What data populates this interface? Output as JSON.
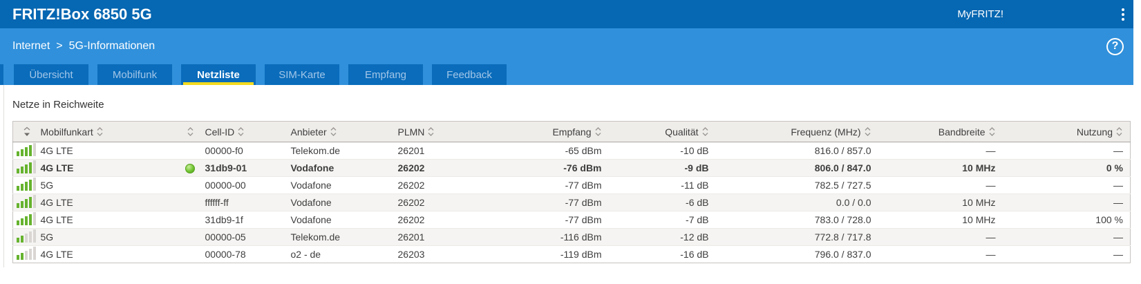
{
  "header": {
    "title": "FRITZ!Box 6850 5G",
    "myfritz_label": "MyFRITZ!"
  },
  "breadcrumb": {
    "section": "Internet",
    "separator": ">",
    "page": "5G-Informationen",
    "help_label": "?"
  },
  "tabs": [
    {
      "label": "Übersicht",
      "active": false
    },
    {
      "label": "Mobilfunk",
      "active": false
    },
    {
      "label": "Netzliste",
      "active": true
    },
    {
      "label": "SIM-Karte",
      "active": false
    },
    {
      "label": "Empfang",
      "active": false
    },
    {
      "label": "Feedback",
      "active": false
    }
  ],
  "main": {
    "heading": "Netze in Reichweite"
  },
  "table": {
    "columns": {
      "mobilfunkart": "Mobilfunkart",
      "cell_id": "Cell-ID",
      "anbieter": "Anbieter",
      "plmn": "PLMN",
      "empfang": "Empfang",
      "qualitaet": "Qualität",
      "frequenz": "Frequenz (MHz)",
      "bandbreite": "Bandbreite",
      "nutzung": "Nutzung"
    },
    "rows": [
      {
        "signal_bars": 4,
        "connected": false,
        "mobilfunkart": "4G LTE",
        "cell_id": "00000-f0",
        "anbieter": "Telekom.de",
        "plmn": "26201",
        "empfang": "-65 dBm",
        "qualitaet": "-10 dB",
        "frequenz": "816.0 / 857.0",
        "bandbreite": "—",
        "nutzung": "—"
      },
      {
        "signal_bars": 4,
        "connected": true,
        "mobilfunkart": "4G LTE",
        "cell_id": "31db9-01",
        "anbieter": "Vodafone",
        "plmn": "26202",
        "empfang": "-76 dBm",
        "qualitaet": "-9 dB",
        "frequenz": "806.0 / 847.0",
        "bandbreite": "10 MHz",
        "nutzung": "0 %"
      },
      {
        "signal_bars": 4,
        "connected": false,
        "mobilfunkart": "5G",
        "cell_id": "00000-00",
        "anbieter": "Vodafone",
        "plmn": "26202",
        "empfang": "-77 dBm",
        "qualitaet": "-11 dB",
        "frequenz": "782.5 / 727.5",
        "bandbreite": "—",
        "nutzung": "—"
      },
      {
        "signal_bars": 4,
        "connected": false,
        "mobilfunkart": "4G LTE",
        "cell_id": "ffffff-ff",
        "anbieter": "Vodafone",
        "plmn": "26202",
        "empfang": "-77 dBm",
        "qualitaet": "-6 dB",
        "frequenz": "0.0 / 0.0",
        "bandbreite": "10 MHz",
        "nutzung": "—"
      },
      {
        "signal_bars": 4,
        "connected": false,
        "mobilfunkart": "4G LTE",
        "cell_id": "31db9-1f",
        "anbieter": "Vodafone",
        "plmn": "26202",
        "empfang": "-77 dBm",
        "qualitaet": "-7 dB",
        "frequenz": "783.0 / 728.0",
        "bandbreite": "10 MHz",
        "nutzung": "100 %"
      },
      {
        "signal_bars": 2,
        "connected": false,
        "mobilfunkart": "5G",
        "cell_id": "00000-05",
        "anbieter": "Telekom.de",
        "plmn": "26201",
        "empfang": "-116 dBm",
        "qualitaet": "-12 dB",
        "frequenz": "772.8 / 717.8",
        "bandbreite": "—",
        "nutzung": "—"
      },
      {
        "signal_bars": 2,
        "connected": false,
        "mobilfunkart": "4G LTE",
        "cell_id": "00000-78",
        "anbieter": "o2 - de",
        "plmn": "26203",
        "empfang": "-119 dBm",
        "qualitaet": "-16 dB",
        "frequenz": "796.0 / 837.0",
        "bandbreite": "—",
        "nutzung": "—"
      }
    ]
  },
  "colors": {
    "topbar_blue": "#0667b2",
    "subbar_blue": "#3090db",
    "tab_blue": "#0a6cbb",
    "active_tab_underline": "#f3da1d",
    "signal_green": "#66b32e",
    "header_gray": "#efedea"
  }
}
